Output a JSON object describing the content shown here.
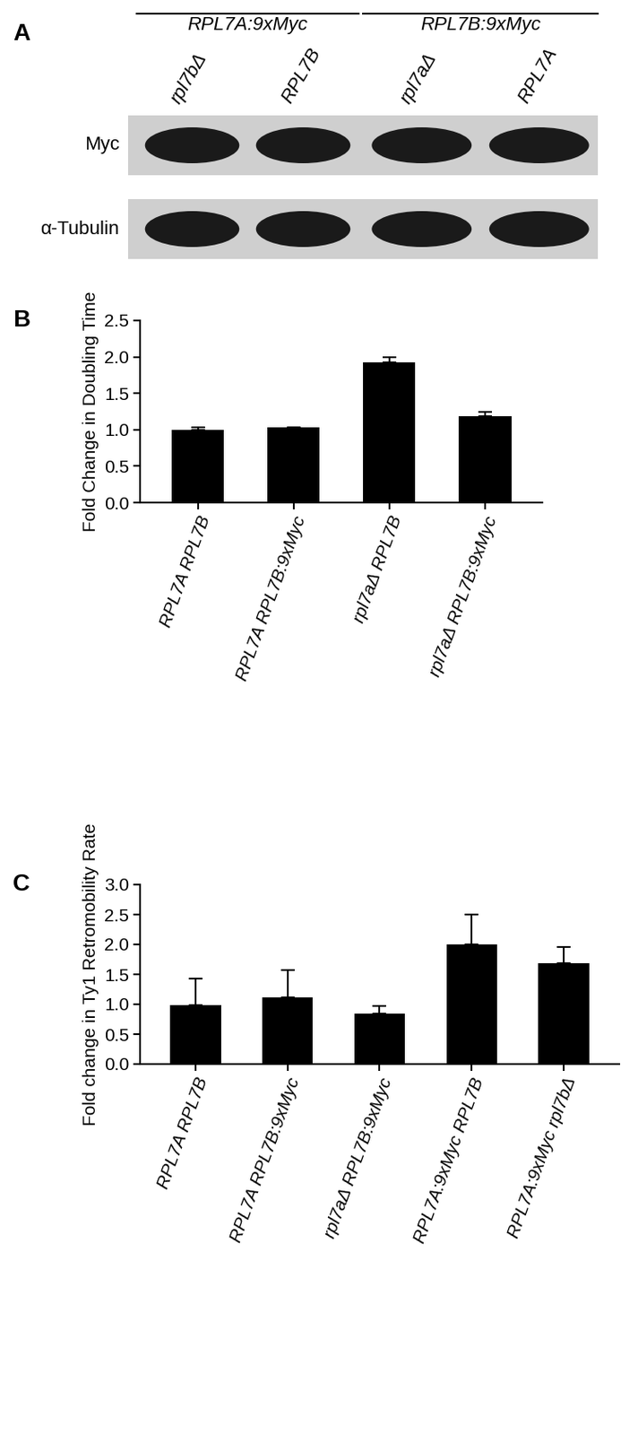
{
  "blot": {
    "label": "A",
    "groups": [
      {
        "label": "RPL7A:9xMyc",
        "lanes": [
          "rpl7bΔ",
          "RPL7B"
        ]
      },
      {
        "label": "RPL7B:9xMyc",
        "lanes": [
          "rpl7aΔ",
          "RPL7A"
        ]
      }
    ],
    "rows": [
      "Myc",
      "α-Tubulin"
    ]
  },
  "chart_data": [
    {
      "type": "bar",
      "title": "B",
      "y_label": "Fold Change in Doubling Time",
      "categories": [
        "RPL7A RPL7B",
        "RPL7A RPL7B:9xMyc",
        "rpl7aΔ RPL7B",
        "rpl7aΔ RPL7B:9xMyc"
      ],
      "values": [
        1.0,
        1.03,
        1.93,
        1.18
      ],
      "errors": [
        0.03,
        0.0,
        0.07,
        0.07
      ],
      "color": "#000000",
      "ylim": [
        0,
        2.5
      ],
      "yticks": [
        {
          "value": 0,
          "label": "0.0"
        },
        {
          "value": 0.5,
          "label": "0.5"
        },
        {
          "value": 1,
          "label": "1.0"
        },
        {
          "value": 1.5,
          "label": "1.5"
        },
        {
          "value": 2,
          "label": "2.0"
        },
        {
          "value": 2.5,
          "label": "2.5"
        }
      ],
      "grid": false
    },
    {
      "type": "bar",
      "title": "C",
      "y_label": "Fold change in Ty1 Retromobility Rate",
      "categories": [
        "RPL7A RPL7B",
        "RPL7A RPL7B:9xMyc",
        "rpl7aΔ RPL7B:9xMyc",
        "RPL7A:9xMyc RPL7B",
        "RPL7A:9xMyc rpl7bΔ"
      ],
      "values": [
        0.98,
        1.12,
        0.84,
        2.0,
        1.68
      ],
      "errors": [
        0.45,
        0.45,
        0.13,
        0.5,
        0.28
      ],
      "color": "#000000",
      "ylim": [
        0,
        3
      ],
      "yticks": [
        {
          "value": 0,
          "label": "0.0"
        },
        {
          "value": 0.5,
          "label": "0.5"
        },
        {
          "value": 1,
          "label": "1.0"
        },
        {
          "value": 1.5,
          "label": "1.5"
        },
        {
          "value": 2,
          "label": "2.0"
        },
        {
          "value": 2.5,
          "label": "2.5"
        },
        {
          "value": 3,
          "label": "3.0"
        }
      ],
      "grid": false
    }
  ]
}
